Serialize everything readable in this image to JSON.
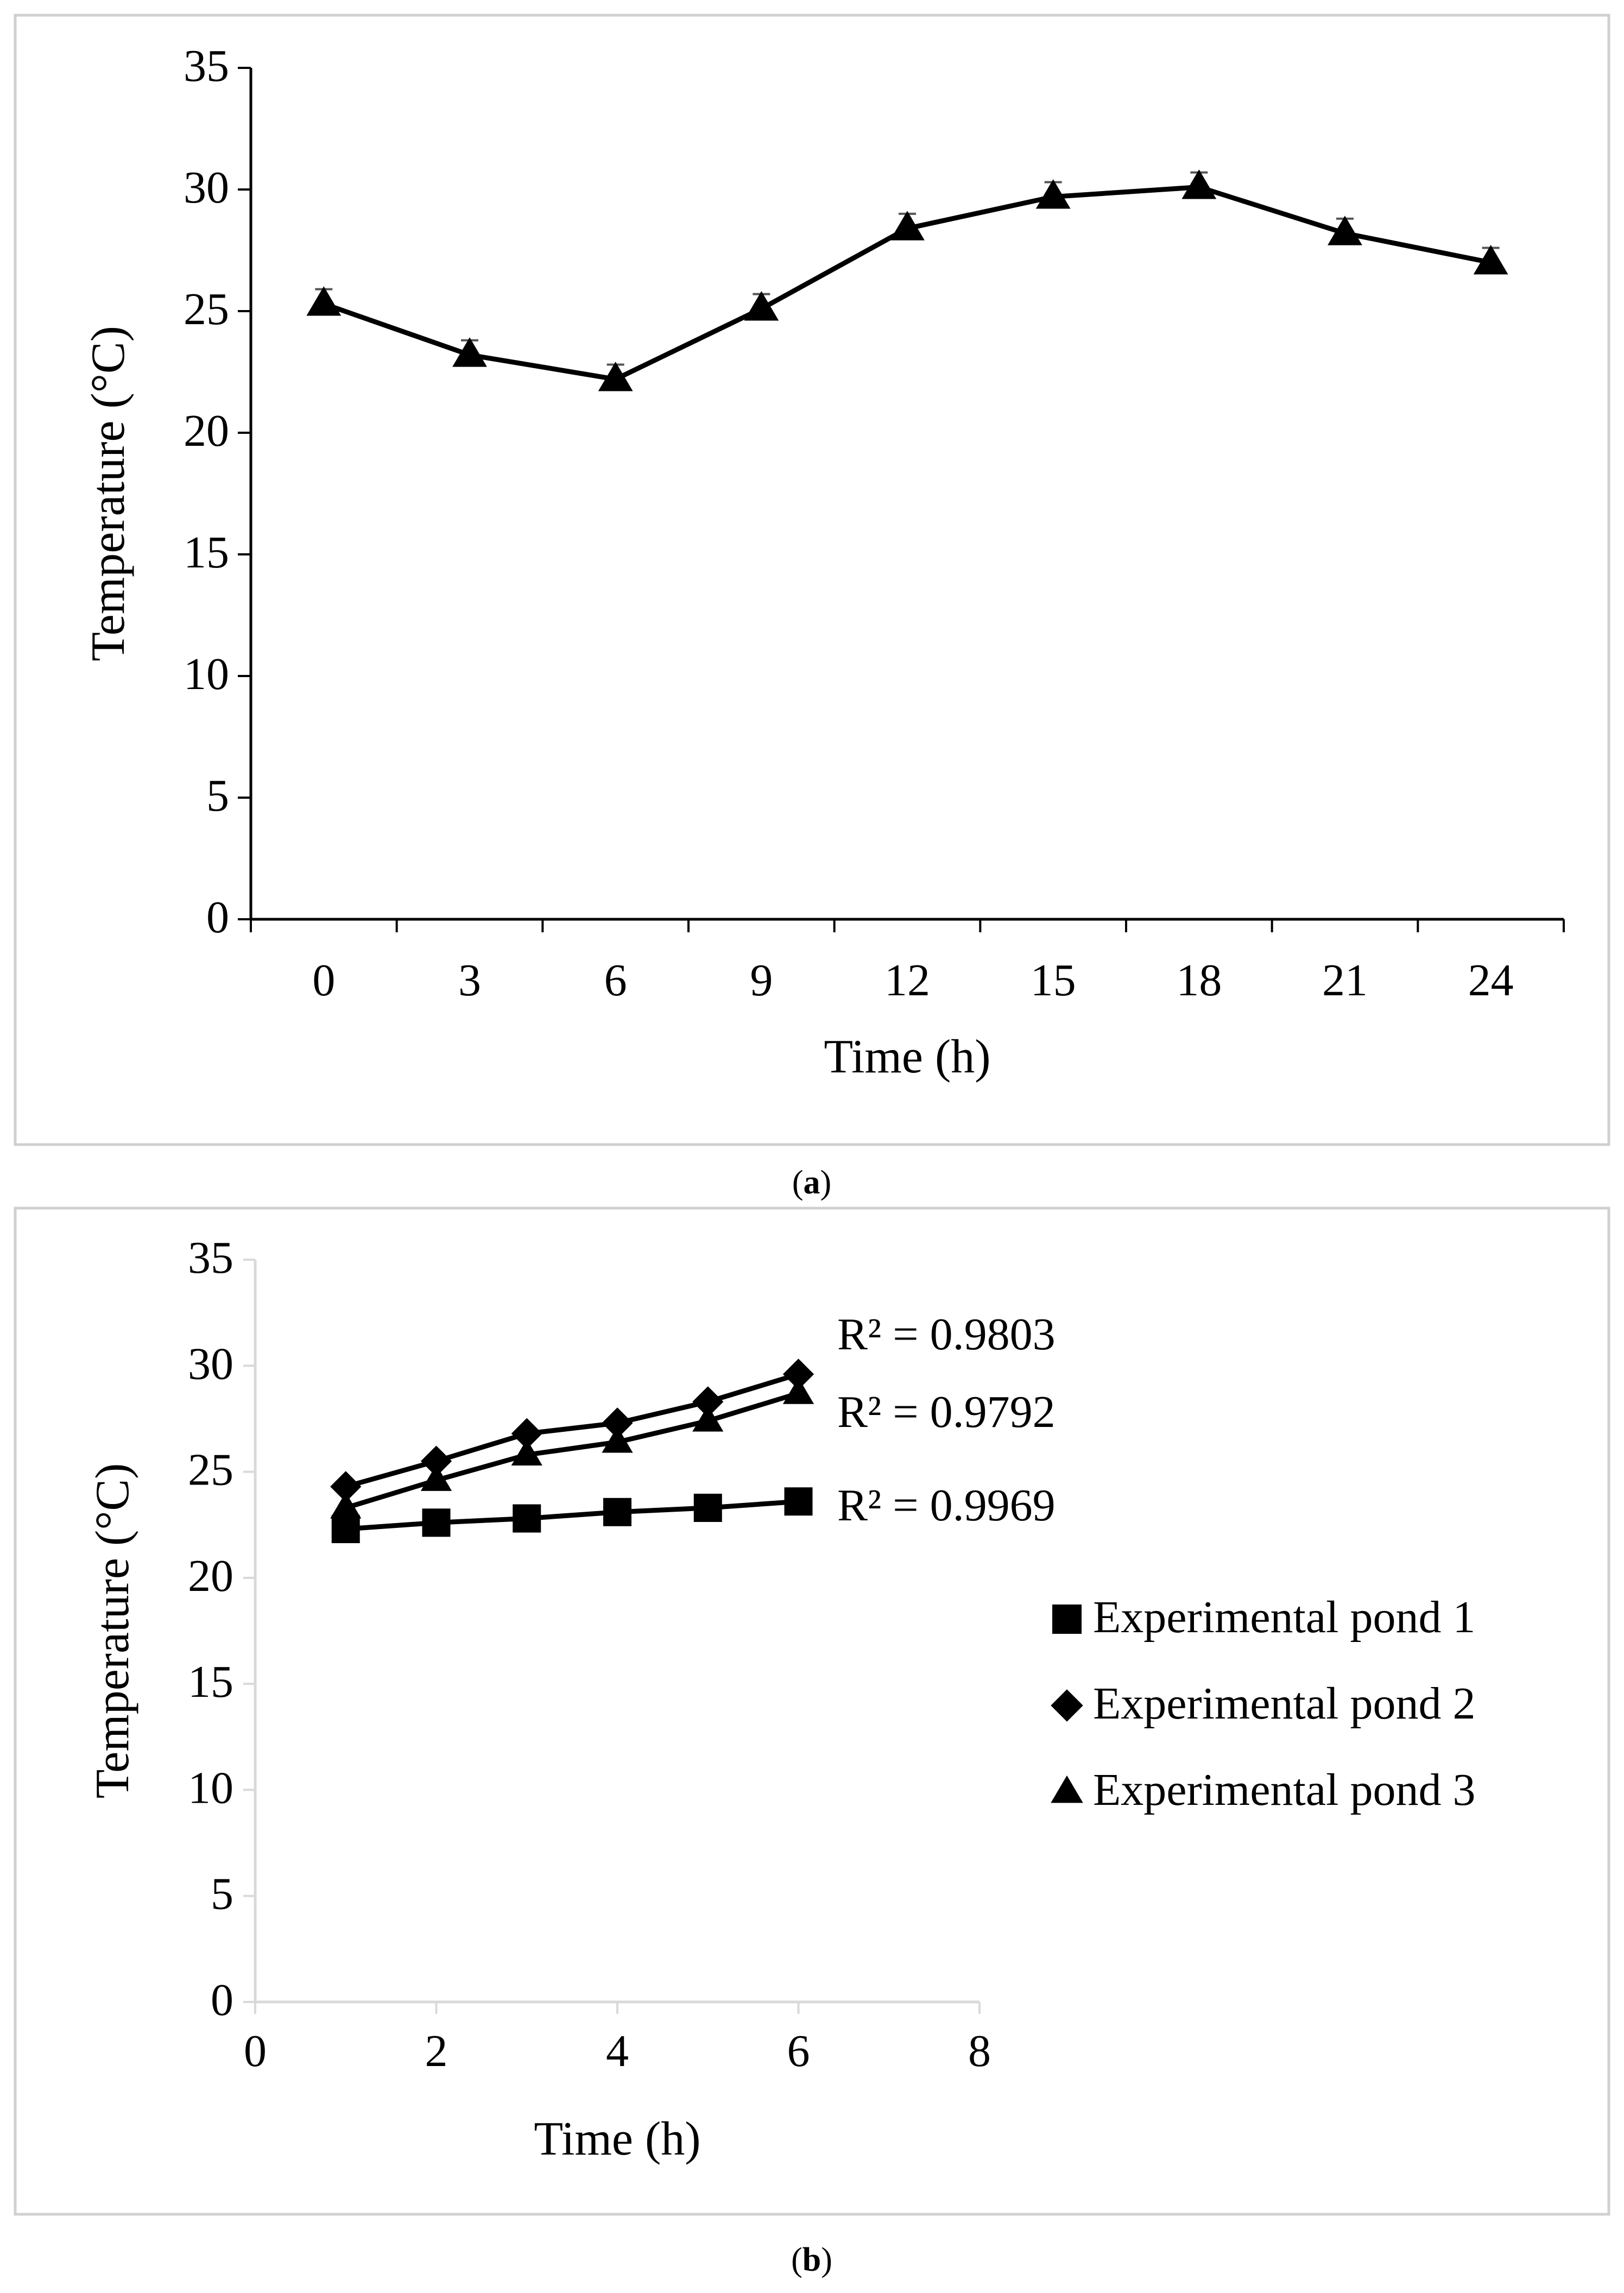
{
  "chart_data": [
    {
      "panel_label": "a",
      "type": "line",
      "title": "",
      "xlabel": "Time (h)",
      "ylabel": "Temperature (°C)",
      "categories": [
        "0",
        "3",
        "6",
        "9",
        "12",
        "15",
        "18",
        "21",
        "24"
      ],
      "y_ticks": [
        "0",
        "5",
        "10",
        "15",
        "20",
        "25",
        "30",
        "35"
      ],
      "ylim": [
        0,
        35
      ],
      "grid": false,
      "series": [
        {
          "name": "Temperature",
          "marker": "triangle",
          "values": [
            25.3,
            23.2,
            22.2,
            25.1,
            28.4,
            29.7,
            30.1,
            28.2,
            27.0
          ],
          "error": [
            0.6,
            0.6,
            0.6,
            0.6,
            0.6,
            0.6,
            0.6,
            0.6,
            0.6
          ]
        }
      ]
    },
    {
      "panel_label": "b",
      "type": "line",
      "title": "",
      "xlabel": "Time (h)",
      "ylabel": "Temperature (°C)",
      "x_ticks": [
        "0",
        "2",
        "4",
        "6",
        "8"
      ],
      "y_ticks": [
        "0",
        "5",
        "10",
        "15",
        "20",
        "25",
        "30",
        "35"
      ],
      "xlim": [
        0,
        8
      ],
      "ylim": [
        0,
        35
      ],
      "grid": false,
      "legend_position": "right",
      "series": [
        {
          "name": "Experimental pond 1",
          "marker": "square",
          "x": [
            1,
            2,
            3,
            4,
            5,
            6
          ],
          "values": [
            22.3,
            22.6,
            22.8,
            23.1,
            23.3,
            23.6
          ],
          "r2_label": "R² = 0.9969"
        },
        {
          "name": "Experimental pond 2",
          "marker": "diamond",
          "x": [
            1,
            2,
            3,
            4,
            5,
            6
          ],
          "values": [
            24.3,
            25.5,
            26.8,
            27.3,
            28.3,
            29.6
          ],
          "r2_label": "R² = 0.9803"
        },
        {
          "name": "Experimental pond 3",
          "marker": "triangle",
          "x": [
            1,
            2,
            3,
            4,
            5,
            6
          ],
          "values": [
            23.3,
            24.6,
            25.8,
            26.4,
            27.4,
            28.7
          ],
          "r2_label": "R² = 0.9792"
        }
      ]
    }
  ]
}
